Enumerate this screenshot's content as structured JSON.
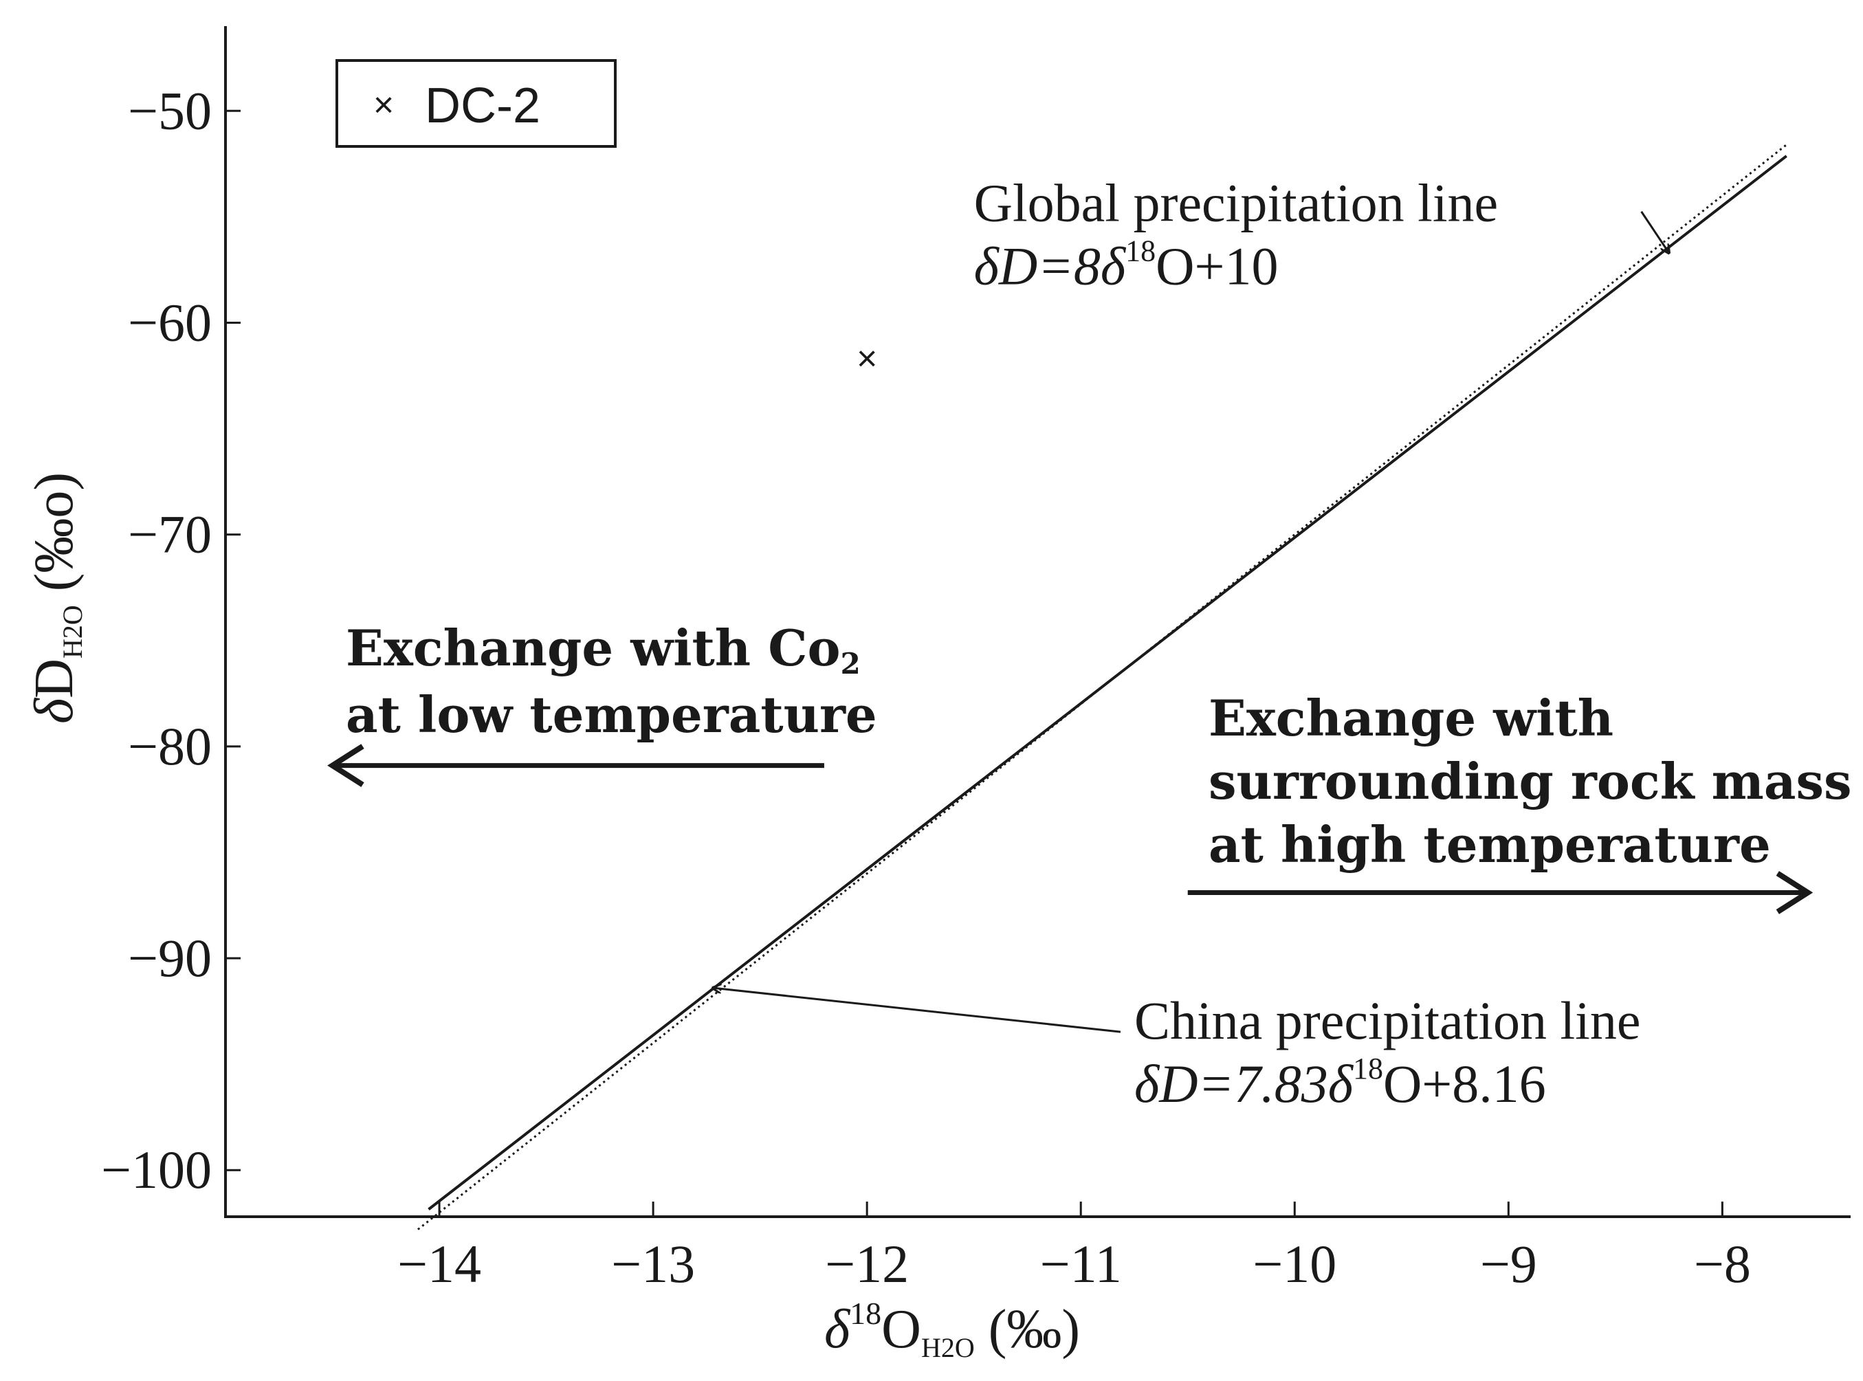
{
  "chart_data": {
    "type": "scatter",
    "x": {
      "label_prefix": "δ",
      "label_sup": "18",
      "label_main": "O",
      "label_sub": "H2O",
      "label_suffix": " (‰)",
      "range": [
        -15.0,
        -7.4
      ],
      "ticks": [
        -14,
        -13,
        -12,
        -11,
        -10,
        -9,
        -8
      ],
      "tick_labels": [
        "−14",
        "−13",
        "−12",
        "−11",
        "−10",
        "−9",
        "−8"
      ]
    },
    "y": {
      "label_prefix": "δ",
      "label_main": "D",
      "label_sub": "H2O",
      "label_suffix": " (‰o)",
      "range": [
        -102.2,
        -46
      ],
      "ticks": [
        -100,
        -90,
        -80,
        -70,
        -60,
        -50
      ],
      "tick_labels": [
        "−100",
        "−90",
        "−80",
        "−70",
        "−60",
        "−50"
      ]
    },
    "series": [
      {
        "name": "DC-2",
        "marker": "×",
        "points": [
          {
            "x": -12.0,
            "y": -61.7
          }
        ]
      }
    ],
    "lines": [
      {
        "name": "Global precipitation line",
        "equation": "δD=8δ18O+10",
        "slope": 8,
        "intercept": 10,
        "style": "dotted",
        "x_range": [
          -14.1,
          -7.7
        ]
      },
      {
        "name": "China precipitation line",
        "equation": "δD=7.83δ18O+8.16",
        "slope": 7.83,
        "intercept": 8.16,
        "style": "solid",
        "x_range": [
          -14.05,
          -7.7
        ]
      }
    ],
    "annotations": {
      "global_label": {
        "title": "Global precipitation line",
        "eq_prefix": "δD=8δ",
        "eq_sup": "18",
        "eq_suffix": "O+10",
        "label_at": {
          "x": -11.5,
          "y": -55.2
        },
        "arrow_to": {
          "x": -8.25,
          "y": -56.7
        }
      },
      "china_label": {
        "title": "China precipitation line",
        "eq_prefix": "δD=7.83δ",
        "eq_sup": "18",
        "eq_suffix": "O+8.16",
        "label_at": {
          "x": -10.75,
          "y": -93.8
        },
        "arrow_to": {
          "x": -12.72,
          "y": -91.4
        }
      },
      "low_temp": {
        "line1_text": "Exchange with Co",
        "line1_sub": "2",
        "line2": "at low temperature",
        "arrow_from": {
          "x": -12.2,
          "y": -80.9
        },
        "arrow_to": {
          "x": -14.5,
          "y": -80.9
        }
      },
      "high_temp": {
        "lines": [
          "Exchange with",
          "surrounding rock mass",
          "at high temperature"
        ],
        "arrow_from": {
          "x": -10.5,
          "y": -86.9
        },
        "arrow_to": {
          "x": -7.6,
          "y": -86.9
        }
      }
    },
    "legend": {
      "position": "top-left",
      "marker": "×",
      "label": "DC-2"
    },
    "grid": false
  }
}
